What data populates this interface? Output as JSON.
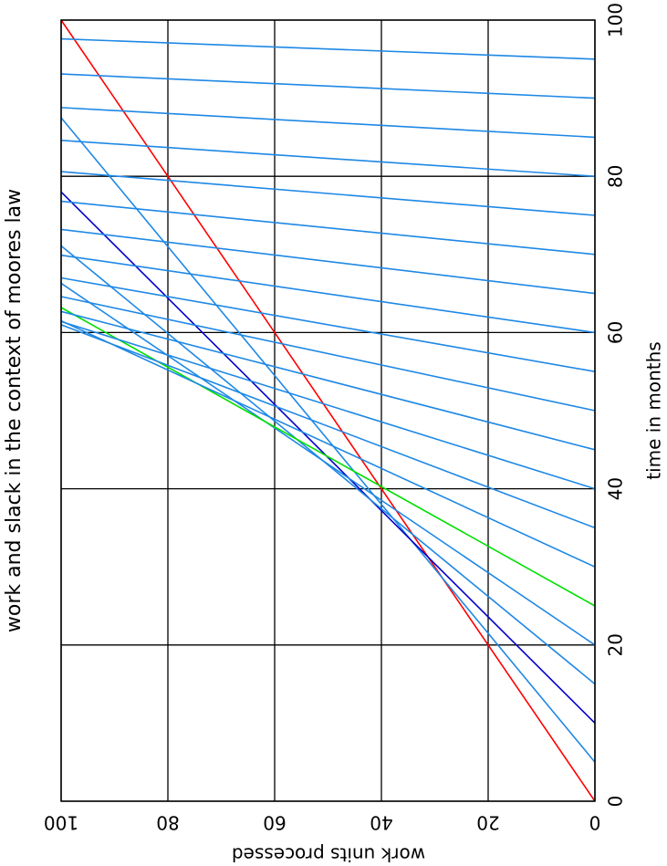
{
  "chart_data": {
    "type": "line",
    "title": "work and slack in the context of moores law",
    "x_label": "time in months",
    "y_label": "work units processed",
    "xlim": [
      0,
      100
    ],
    "ylim": [
      0,
      100
    ],
    "xticks": [
      0,
      20,
      40,
      60,
      80,
      100
    ],
    "yticks": [
      0,
      20,
      40,
      60,
      80,
      100
    ],
    "grid": true,
    "series": [
      {
        "color": "#ff0000",
        "x": [
          0,
          100
        ],
        "values": [
          0,
          100
        ]
      },
      {
        "color": "#1e88e5",
        "x": [
          5,
          87.5
        ],
        "values": [
          0,
          100
        ]
      },
      {
        "color": "#0000c8",
        "x": [
          10,
          78
        ],
        "values": [
          0,
          100
        ]
      },
      {
        "color": "#1e88e5",
        "x": [
          15,
          71.1
        ],
        "values": [
          0,
          100
        ]
      },
      {
        "color": "#1e88e5",
        "x": [
          20,
          66.3
        ],
        "values": [
          0,
          100
        ]
      },
      {
        "color": "#00e000",
        "x": [
          25,
          63.2
        ],
        "values": [
          0,
          100
        ]
      },
      {
        "color": "#1e88e5",
        "x": [
          30,
          61.5
        ],
        "values": [
          0,
          100
        ]
      },
      {
        "color": "#1e88e5",
        "x": [
          35,
          61
        ],
        "values": [
          0,
          100
        ]
      },
      {
        "color": "#1e88e5",
        "x": [
          40,
          61.4
        ],
        "values": [
          0,
          100
        ]
      },
      {
        "color": "#1e88e5",
        "x": [
          45,
          62.7
        ],
        "values": [
          0,
          100
        ]
      },
      {
        "color": "#1e88e5",
        "x": [
          50,
          64.6
        ],
        "values": [
          0,
          100
        ]
      },
      {
        "color": "#1e88e5",
        "x": [
          55,
          67
        ],
        "values": [
          0,
          100
        ]
      },
      {
        "color": "#1e88e5",
        "x": [
          60,
          69.9
        ],
        "values": [
          0,
          100
        ]
      },
      {
        "color": "#1e88e5",
        "x": [
          65,
          73.2
        ],
        "values": [
          0,
          100
        ]
      },
      {
        "color": "#1e88e5",
        "x": [
          70,
          76.8
        ],
        "values": [
          0,
          100
        ]
      },
      {
        "color": "#1e88e5",
        "x": [
          75,
          80.6
        ],
        "values": [
          0,
          100
        ]
      },
      {
        "color": "#1e88e5",
        "x": [
          80,
          84.6
        ],
        "values": [
          0,
          100
        ]
      },
      {
        "color": "#1e88e5",
        "x": [
          85,
          88.8
        ],
        "values": [
          0,
          100
        ]
      },
      {
        "color": "#1e88e5",
        "x": [
          90,
          93.1
        ],
        "values": [
          0,
          100
        ]
      },
      {
        "color": "#1e88e5",
        "x": [
          95,
          97.6
        ],
        "values": [
          0,
          100
        ]
      }
    ]
  }
}
